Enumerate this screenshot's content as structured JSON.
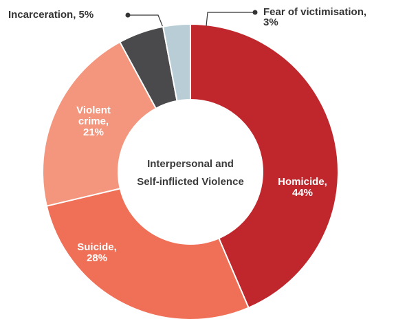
{
  "chart_data": {
    "type": "donut",
    "center_label": [
      "Interpersonal and",
      "Self-inflicted Violence"
    ],
    "categories": [
      "Homicide,",
      "Suicide,",
      "Violent crime,",
      "Incarceration,",
      "Fear of victimisation,"
    ],
    "values": [
      44,
      28,
      21,
      5,
      3
    ],
    "value_labels": [
      "44%",
      "28%",
      "21%",
      "5%",
      "3%"
    ],
    "colors": [
      "#c0272d",
      "#f07057",
      "#f4957d",
      "#4a4a4c",
      "#b8cdd6"
    ]
  }
}
